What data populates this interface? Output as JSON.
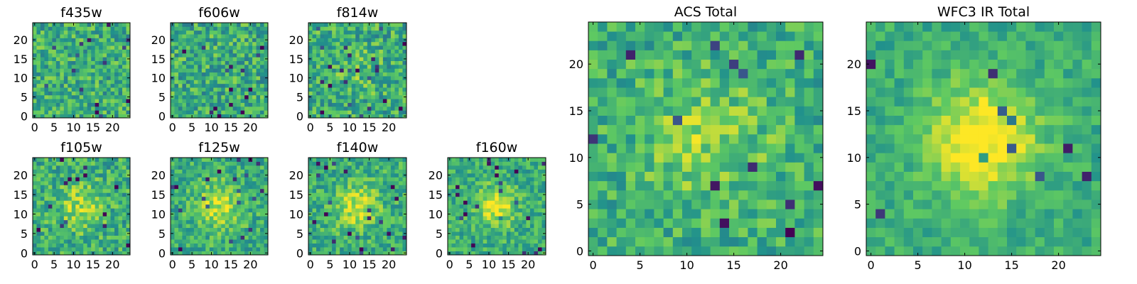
{
  "chart_data": {
    "type": "heatmap",
    "colormap": "viridis",
    "colormap_colors": [
      "#440154",
      "#3b528b",
      "#21918c",
      "#5ec962",
      "#fde725"
    ],
    "grid": false,
    "panels": [
      {
        "title": "f435w",
        "size": 25,
        "xticks": [
          0,
          5,
          10,
          15,
          20
        ],
        "yticks": [
          0,
          5,
          10,
          15,
          20
        ],
        "source_peak": 0.0,
        "source_width": 4,
        "noise": 0.22,
        "seed": 435
      },
      {
        "title": "f606w",
        "size": 25,
        "xticks": [
          0,
          5,
          10,
          15,
          20
        ],
        "yticks": [
          0,
          5,
          10,
          15,
          20
        ],
        "source_peak": 0.0,
        "source_width": 4,
        "noise": 0.22,
        "seed": 606
      },
      {
        "title": "f814w",
        "size": 25,
        "xticks": [
          0,
          5,
          10,
          15,
          20
        ],
        "yticks": [
          0,
          5,
          10,
          15,
          20
        ],
        "source_peak": 0.1,
        "source_width": 4,
        "noise": 0.22,
        "seed": 814
      },
      {
        "title": "f105w",
        "size": 25,
        "xticks": [
          0,
          5,
          10,
          15,
          20
        ],
        "yticks": [
          0,
          5,
          10,
          15,
          20
        ],
        "source_peak": 0.25,
        "source_width": 4,
        "noise": 0.2,
        "seed": 105
      },
      {
        "title": "f125w",
        "size": 25,
        "xticks": [
          0,
          5,
          10,
          15,
          20
        ],
        "yticks": [
          0,
          5,
          10,
          15,
          20
        ],
        "source_peak": 0.3,
        "source_width": 4,
        "noise": 0.18,
        "seed": 125
      },
      {
        "title": "f140w",
        "size": 25,
        "xticks": [
          0,
          5,
          10,
          15,
          20
        ],
        "yticks": [
          0,
          5,
          10,
          15,
          20
        ],
        "source_peak": 0.3,
        "source_width": 4,
        "noise": 0.18,
        "seed": 140
      },
      {
        "title": "f160w",
        "size": 25,
        "xticks": [
          0,
          5,
          10,
          15,
          20
        ],
        "yticks": [
          0,
          5,
          10,
          15,
          20
        ],
        "source_peak": 0.35,
        "source_width": 3.5,
        "noise": 0.17,
        "seed": 160
      },
      {
        "title": "ACS Total",
        "size": 25,
        "xticks": [
          0,
          5,
          10,
          15,
          20
        ],
        "yticks": [
          0,
          5,
          10,
          15,
          20
        ],
        "source_peak": 0.2,
        "source_width": 5,
        "noise": 0.18,
        "seed": 777
      },
      {
        "title": "WFC3 IR Total",
        "size": 25,
        "xticks": [
          0,
          5,
          10,
          15,
          20
        ],
        "yticks": [
          0,
          5,
          10,
          15,
          20
        ],
        "source_peak": 0.45,
        "source_width": 4,
        "noise": 0.12,
        "seed": 999
      }
    ]
  }
}
